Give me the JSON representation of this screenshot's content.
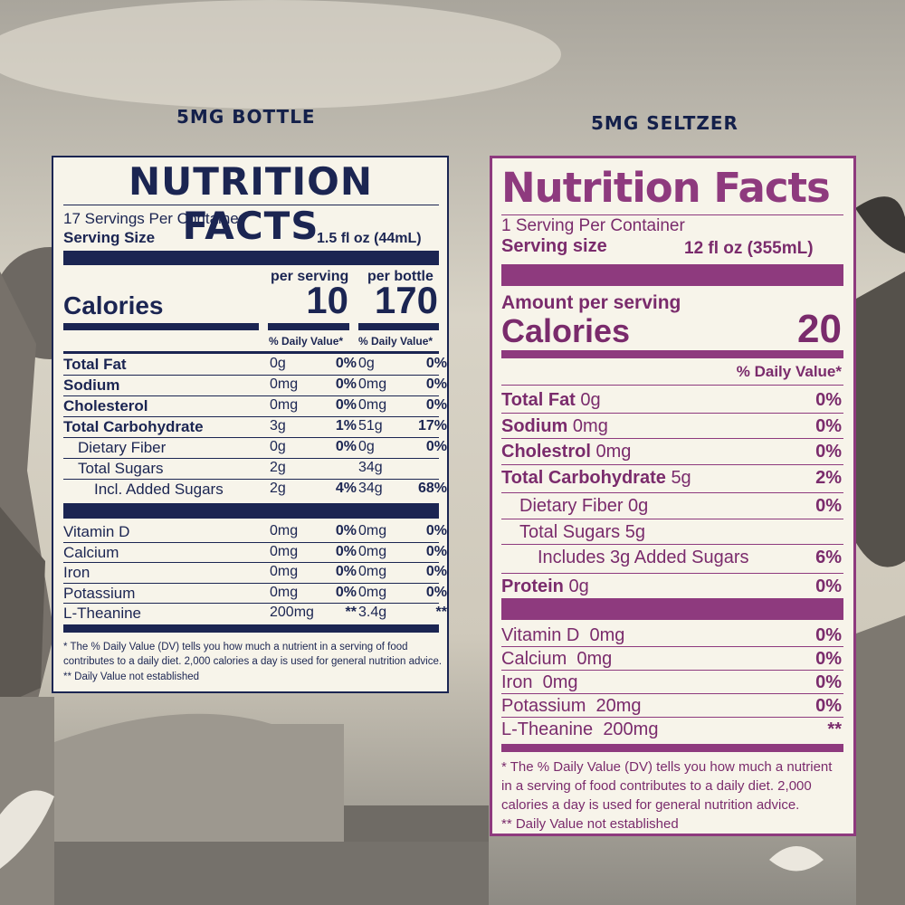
{
  "left": {
    "heading": "5MG BOTTLE",
    "title": "NUTRITION FACTS",
    "servings": "17 Servings Per Container",
    "serving_size_label": "Serving Size",
    "serving_size_value": "1.5 fl oz (44mL)",
    "per_serving_label": "per serving",
    "per_bottle_label": "per bottle",
    "calories_label": "Calories",
    "calories_serving": "10",
    "calories_bottle": "170",
    "dv_label_1": "% Daily Value*",
    "dv_label_2": "% Daily Value*",
    "nutrients": [
      {
        "name": "Total Fat",
        "s_amt": "0g",
        "s_pct": "0%",
        "b_amt": "0g",
        "b_pct": "0%"
      },
      {
        "name": "Sodium",
        "s_amt": "0mg",
        "s_pct": "0%",
        "b_amt": "0mg",
        "b_pct": "0%"
      },
      {
        "name": "Cholesterol",
        "s_amt": "0mg",
        "s_pct": "0%",
        "b_amt": "0mg",
        "b_pct": "0%"
      },
      {
        "name": "Total Carbohydrate",
        "s_amt": "3g",
        "s_pct": "1%",
        "b_amt": "51g",
        "b_pct": "17%"
      },
      {
        "name": "Dietary Fiber",
        "s_amt": "0g",
        "s_pct": "0%",
        "b_amt": "0g",
        "b_pct": "0%"
      },
      {
        "name": "Total Sugars",
        "s_amt": "2g",
        "s_pct": "",
        "b_amt": "34g",
        "b_pct": ""
      },
      {
        "name": "Incl. Added Sugars",
        "s_amt": "2g",
        "s_pct": "4%",
        "b_amt": "34g",
        "b_pct": "68%"
      }
    ],
    "vitamins": [
      {
        "name": "Vitamin D",
        "s_amt": "0mg",
        "s_pct": "0%",
        "b_amt": "0mg",
        "b_pct": "0%"
      },
      {
        "name": "Calcium",
        "s_amt": "0mg",
        "s_pct": "0%",
        "b_amt": "0mg",
        "b_pct": "0%"
      },
      {
        "name": "Iron",
        "s_amt": "0mg",
        "s_pct": "0%",
        "b_amt": "0mg",
        "b_pct": "0%"
      },
      {
        "name": "Potassium",
        "s_amt": "0mg",
        "s_pct": "0%",
        "b_amt": "0mg",
        "b_pct": "0%"
      },
      {
        "name": "L-Theanine",
        "s_amt": "200mg",
        "s_pct": "**",
        "b_amt": "3.4g",
        "b_pct": "**"
      }
    ],
    "footnote_1": "* The % Daily Value (DV) tells you how much a nutrient in a serving of food contributes to a daily diet. 2,000 calories a day is used for general nutrition advice.",
    "footnote_2": "** Daily Value not established"
  },
  "right": {
    "heading": "5MG SELTZER",
    "title": "Nutrition Facts",
    "servings": "1 Serving Per Container",
    "serving_size_label": "Serving size",
    "serving_size_value": "12 fl oz (355mL)",
    "amount_label": "Amount per serving",
    "calories_label": "Calories",
    "calories_value": "20",
    "dv_label": "% Daily Value*",
    "nutrients": [
      {
        "name": "Total Fat",
        "amt": "0g",
        "pct": "0%",
        "bold": true,
        "indent": 0
      },
      {
        "name": "Sodium",
        "amt": "0mg",
        "pct": "0%",
        "bold": true,
        "indent": 0
      },
      {
        "name": "Cholestrol",
        "amt": "0mg",
        "pct": "0%",
        "bold": true,
        "indent": 0
      },
      {
        "name": "Total Carbohydrate",
        "amt": "5g",
        "pct": "2%",
        "bold": true,
        "indent": 0
      },
      {
        "name": "Dietary Fiber",
        "amt": "0g",
        "pct": "0%",
        "bold": false,
        "indent": 1
      },
      {
        "name": "Total Sugars",
        "amt": "5g",
        "pct": "",
        "bold": false,
        "indent": 1
      },
      {
        "name": "Includes 3g Added Sugars",
        "amt": "",
        "pct": "6%",
        "bold": false,
        "indent": 2
      },
      {
        "name": "Protein",
        "amt": "0g",
        "pct": "0%",
        "bold": true,
        "indent": 0
      }
    ],
    "vitamins": [
      {
        "name": "Vitamin D",
        "amt": "0mg",
        "pct": "0%"
      },
      {
        "name": "Calcium",
        "amt": "0mg",
        "pct": "0%"
      },
      {
        "name": "Iron",
        "amt": "0mg",
        "pct": "0%"
      },
      {
        "name": "Potassium",
        "amt": "20mg",
        "pct": "0%"
      },
      {
        "name": "L-Theanine",
        "amt": "200mg",
        "pct": "**"
      }
    ],
    "footnote_1": "* The % Daily Value (DV) tells you how much a nutrient in a serving of food contributes to a daily diet. 2,000 calories a day is used for general nutrition advice.",
    "footnote_2": "** Daily Value not established"
  },
  "colors": {
    "navy": "#1b2552",
    "plum": "#8e3a7e",
    "paper": "#f7f4ea"
  }
}
